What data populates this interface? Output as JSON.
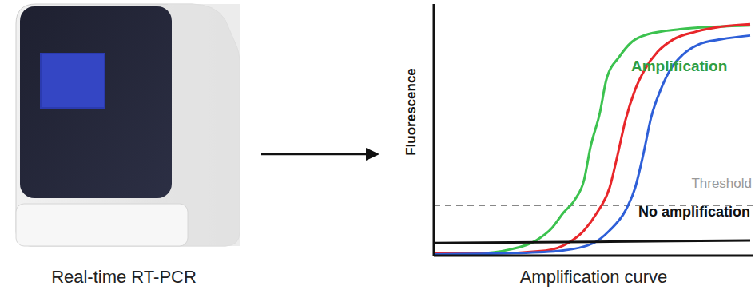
{
  "instrument": {
    "label": "Real-time RT-PCR"
  },
  "chart_data": {
    "type": "line",
    "x_label": "Amplification curve",
    "y_label": "Fluorescence",
    "xlim": [
      0,
      100
    ],
    "ylim": [
      0,
      100
    ],
    "xticks": [],
    "yticks": [],
    "tick_labels": false,
    "grid": false,
    "threshold": {
      "value": 20,
      "label": "Threshold"
    },
    "annotations": [
      {
        "text": "Amplification",
        "color": "#2e9e44"
      },
      {
        "text": "Threshold",
        "color": "#999999"
      },
      {
        "text": "No amplification",
        "color": "#111111"
      }
    ],
    "series": [
      {
        "color": "#3cc24f",
        "x": [
          0,
          14,
          24,
          32,
          37,
          40.5,
          44,
          47,
          49,
          52,
          54,
          58,
          62,
          67,
          77,
          89,
          99
        ],
        "values": [
          1,
          1,
          2.5,
          6,
          11,
          17,
          22,
          30,
          43,
          57,
          70,
          79,
          85,
          88,
          90,
          91,
          91.5
        ]
      },
      {
        "color": "#e8262a",
        "x": [
          0,
          20,
          35,
          42,
          47,
          51,
          55,
          57.5,
          60,
          63,
          66,
          70,
          75,
          82,
          90,
          99
        ],
        "values": [
          1,
          1,
          2,
          5,
          10,
          17,
          27,
          40,
          54,
          66,
          74,
          81,
          86,
          89,
          91,
          92
        ]
      },
      {
        "color": "#2e5fd8",
        "x": [
          0,
          25,
          40,
          50,
          55,
          60,
          63,
          65.5,
          68,
          71,
          74,
          78,
          83,
          90,
          99
        ],
        "values": [
          0.5,
          1,
          2,
          5,
          10,
          18,
          27,
          40,
          55,
          66,
          74,
          80,
          84,
          86,
          87.5
        ]
      },
      {
        "color": "#111111",
        "x": [
          0,
          50,
          99
        ],
        "values": [
          5,
          5.5,
          6
        ]
      }
    ]
  }
}
